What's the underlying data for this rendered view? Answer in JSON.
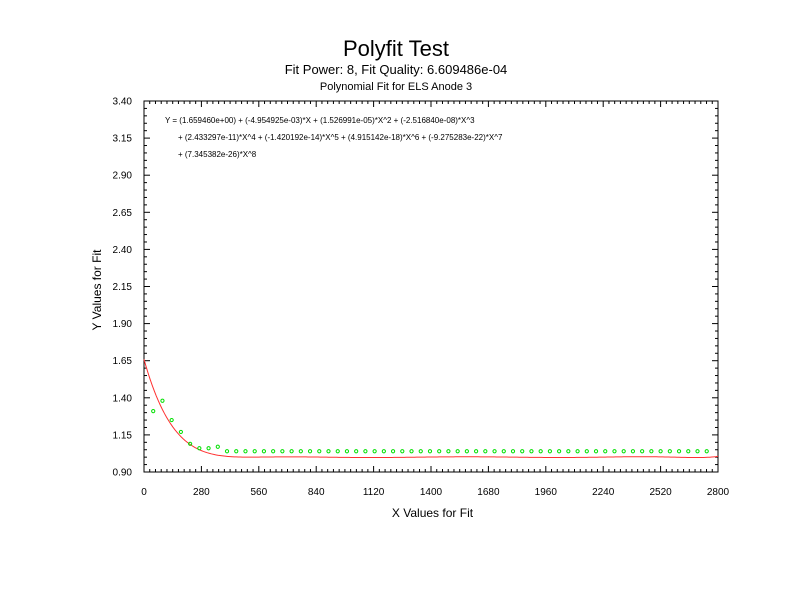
{
  "title": "Polyfit Test",
  "subtitle": "Fit Power: 8, Fit Quality: 6.609486e-04",
  "subtitle2": "Polynomial Fit for ELS Anode 3",
  "equation": {
    "line1": "Y = (1.659460e+00) + (-4.954925e-03)*X + (1.526991e-05)*X^2 + (-2.516840e-08)*X^3",
    "line2": "+ (2.433297e-11)*X^4 + (-1.420192e-14)*X^5 + (4.915142e-18)*X^6 + (-9.275283e-22)*X^7",
    "line3": "+ (7.345382e-26)*X^8"
  },
  "colors": {
    "points": "#00e000",
    "fit": "#ff3030",
    "axis": "#000000"
  },
  "chart_data": {
    "type": "scatter",
    "xlabel": "X Values for Fit",
    "ylabel": "Y Values for Fit",
    "xlim": [
      0,
      2800
    ],
    "ylim": [
      0.9,
      3.4
    ],
    "xticks": [
      0,
      280,
      560,
      840,
      1120,
      1400,
      1680,
      1960,
      2240,
      2520,
      2800
    ],
    "xtick_labels": [
      "0",
      "280",
      "560",
      "840",
      "1120",
      "1400",
      "1680",
      "1960",
      "2240",
      "2520",
      "2800"
    ],
    "yticks": [
      0.9,
      1.15,
      1.4,
      1.65,
      1.9,
      2.15,
      2.4,
      2.65,
      2.9,
      3.15,
      3.4
    ],
    "ytick_labels": [
      "0.90",
      "1.15",
      "1.40",
      "1.65",
      "1.90",
      "2.15",
      "2.40",
      "2.65",
      "2.90",
      "3.15",
      "3.40"
    ],
    "grid": false,
    "series": [
      {
        "x": [
          45,
          90,
          135,
          180,
          225,
          270,
          315,
          360,
          405,
          450,
          495,
          540,
          585,
          630,
          675,
          720,
          765,
          810,
          855,
          900,
          945,
          990,
          1035,
          1080,
          1125,
          1170,
          1215,
          1260,
          1305,
          1350,
          1395,
          1440,
          1485,
          1530,
          1575,
          1620,
          1665,
          1710,
          1755,
          1800,
          1845,
          1890,
          1935,
          1980,
          2025,
          2070,
          2115,
          2160,
          2205,
          2250,
          2295,
          2340,
          2385,
          2430,
          2475,
          2520,
          2565,
          2610,
          2655,
          2700,
          2745
        ],
        "y": [
          1.31,
          1.38,
          1.25,
          1.17,
          1.09,
          1.06,
          1.06,
          1.07,
          1.04,
          1.04,
          1.04,
          1.04,
          1.04,
          1.04,
          1.04,
          1.04,
          1.04,
          1.04,
          1.04,
          1.04,
          1.04,
          1.04,
          1.04,
          1.04,
          1.04,
          1.04,
          1.04,
          1.04,
          1.04,
          1.04,
          1.04,
          1.04,
          1.04,
          1.04,
          1.04,
          1.04,
          1.04,
          1.04,
          1.04,
          1.04,
          1.04,
          1.04,
          1.04,
          1.04,
          1.04,
          1.04,
          1.04,
          1.04,
          1.04,
          1.04,
          1.04,
          1.04,
          1.04,
          1.04,
          1.04,
          1.04,
          1.04,
          1.04,
          1.04,
          1.04,
          1.04
        ]
      }
    ],
    "fit_coefficients": [
      1.65946,
      -0.004954925,
      1.526991e-05,
      -2.51684e-08,
      2.433297e-11,
      -1.420192e-14,
      4.915142e-18,
      -9.275283e-22,
      7.345382e-26
    ]
  }
}
